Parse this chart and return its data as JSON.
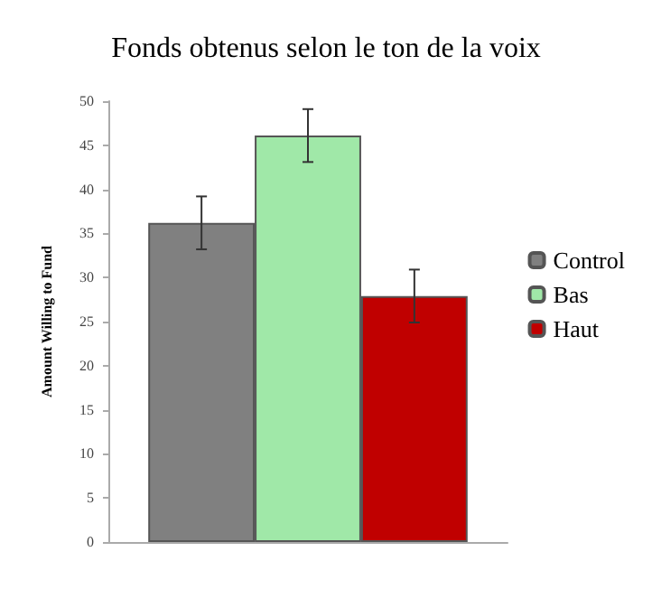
{
  "chart_data": {
    "type": "bar",
    "title": "Fonds obtenus selon le ton de la voix",
    "ylabel": "Amount Willing to Fund",
    "categories": [
      null
    ],
    "series": [
      {
        "name": "Control",
        "color": "#808080",
        "values": [
          36.2
        ],
        "errors": [
          3
        ]
      },
      {
        "name": "Bas",
        "color": "#a0e8a8",
        "values": [
          46.1
        ],
        "errors": [
          3
        ]
      },
      {
        "name": "Haut",
        "color": "#c00000",
        "values": [
          27.9
        ],
        "errors": [
          3
        ]
      }
    ],
    "ylim": [
      0,
      50
    ],
    "yticks": [
      0,
      5,
      10,
      15,
      20,
      25,
      30,
      35,
      40,
      45,
      50
    ],
    "grid": false,
    "legend": "right"
  }
}
